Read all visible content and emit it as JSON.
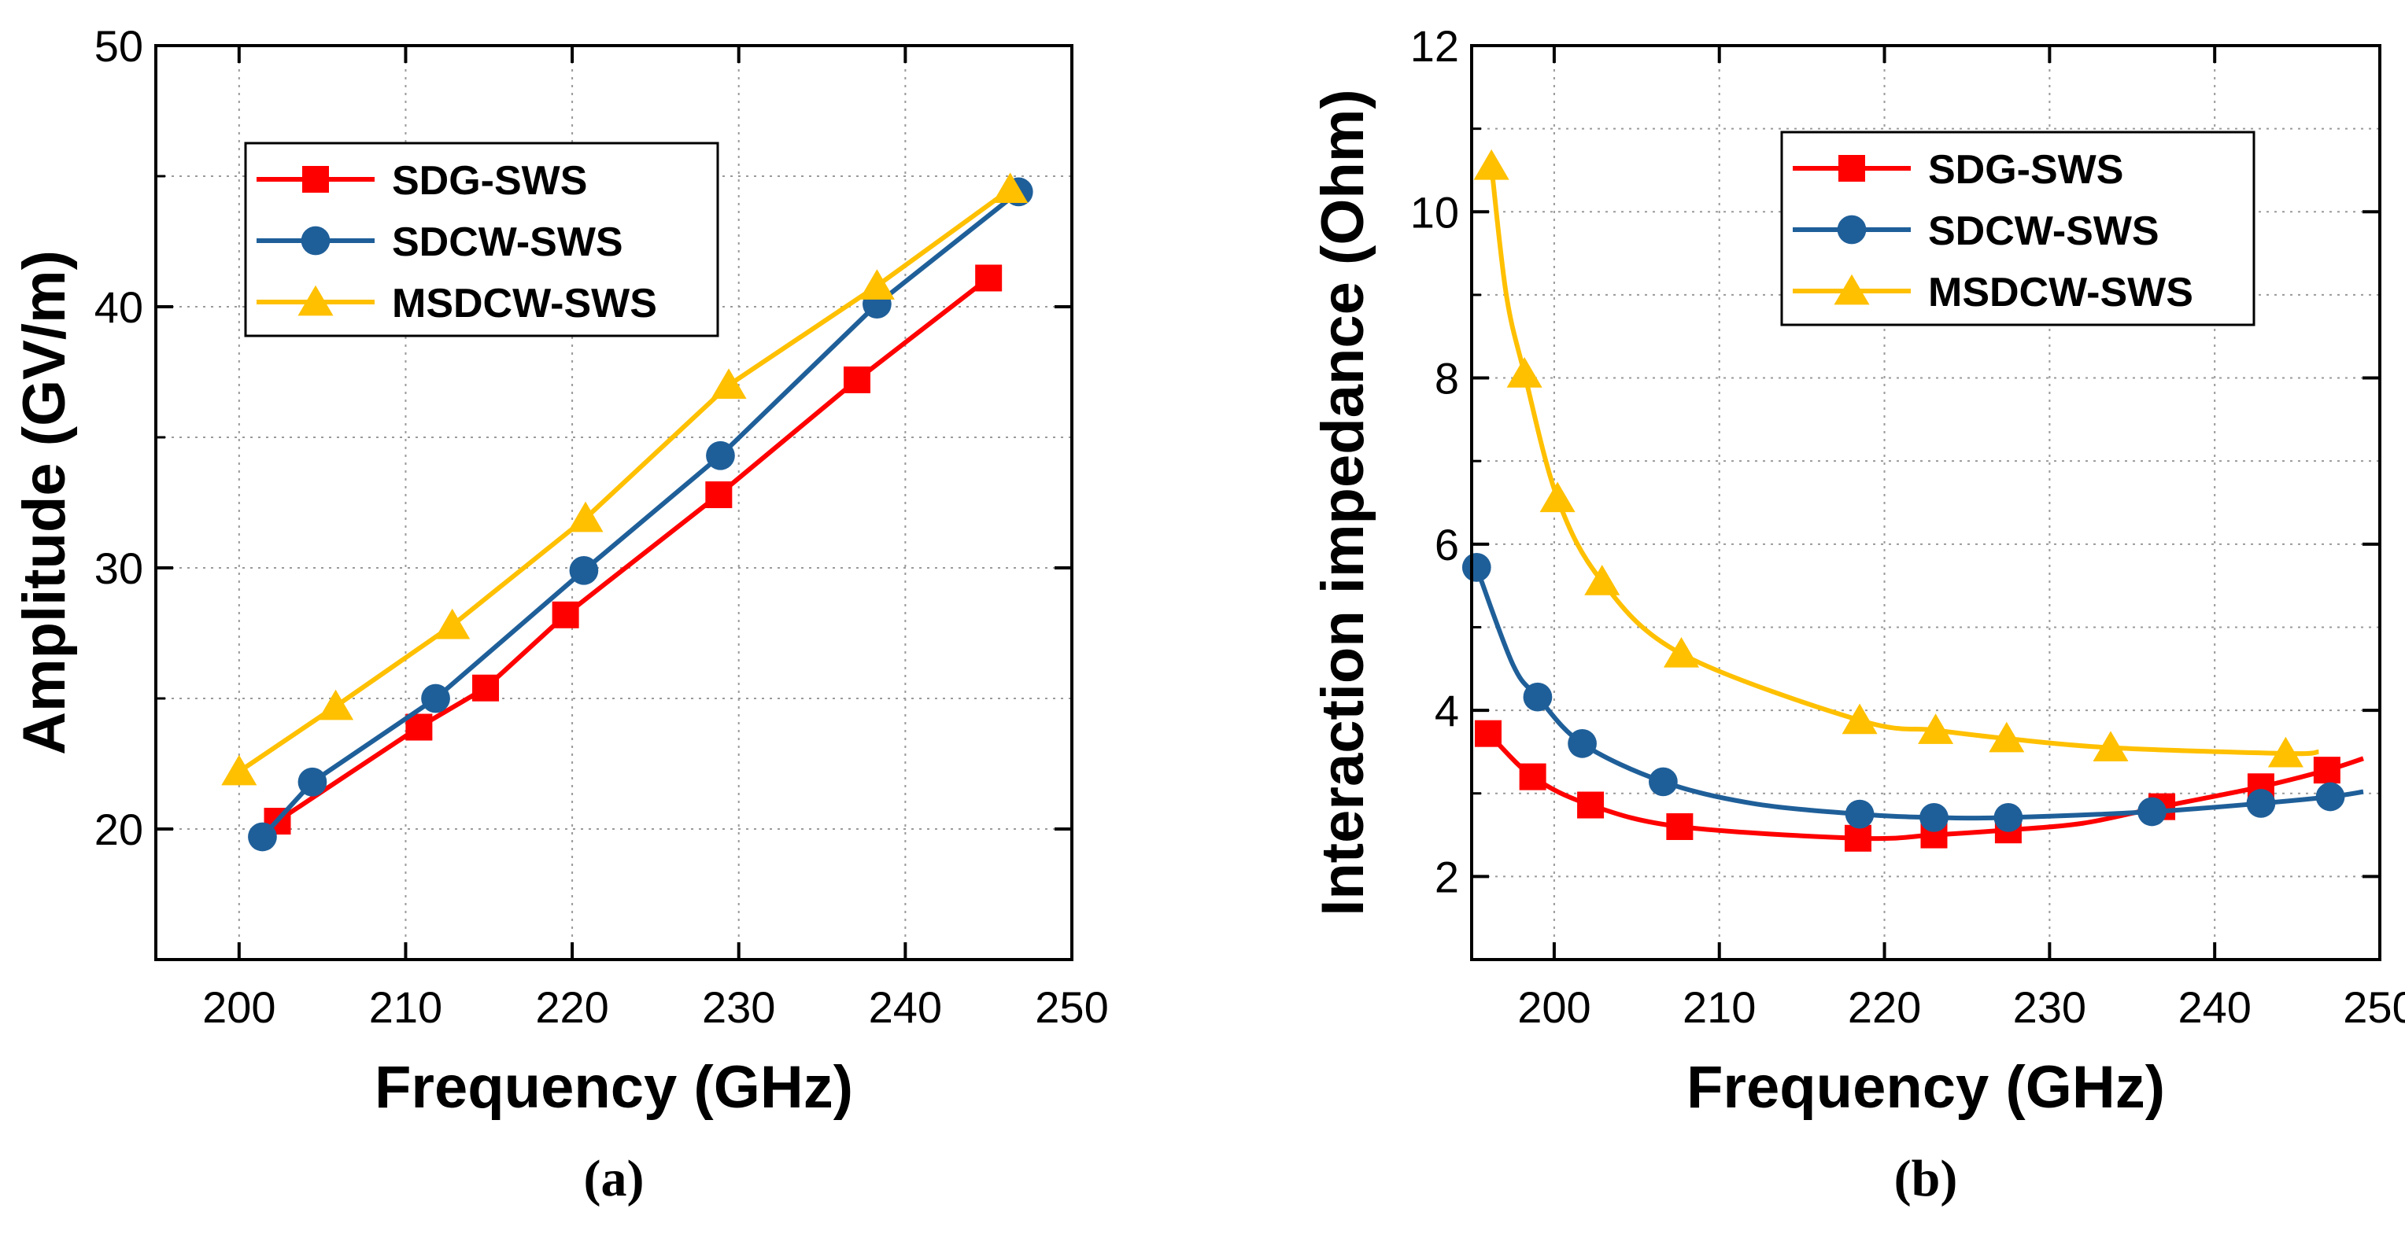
{
  "colors": {
    "SDG-SWS": "#ff0000",
    "SDCW-SWS": "#1f5f99",
    "MSDCW-SWS": "#ffc000",
    "axis": "#000000",
    "grid": "#9a9a9a"
  },
  "chart_data": [
    {
      "type": "line",
      "panel_label": "(a)",
      "xlabel": "Frequency (GHz)",
      "ylabel": "Amplitude (GV/m)",
      "xlim": [
        195,
        250
      ],
      "ylim": [
        15,
        50
      ],
      "xticks": [
        200,
        210,
        220,
        230,
        240,
        250
      ],
      "xtick_labels": [
        "200",
        "210",
        "220",
        "230",
        "240",
        "250"
      ],
      "yticks": [
        20,
        30,
        40,
        50
      ],
      "ytick_labels": [
        "20",
        "30",
        "40",
        "50"
      ],
      "grid": true,
      "legend_position": "top-left",
      "series": [
        {
          "name": "SDG-SWS",
          "marker": "square",
          "x": [
            202.3,
            210.8,
            214.8,
            219.6,
            228.8,
            237.1,
            245.0
          ],
          "y": [
            20.3,
            23.9,
            25.4,
            28.2,
            32.8,
            37.2,
            41.1
          ]
        },
        {
          "name": "SDCW-SWS",
          "marker": "circle",
          "x": [
            201.4,
            204.4,
            211.8,
            220.7,
            228.9,
            238.3,
            246.8
          ],
          "y": [
            19.7,
            21.8,
            25.0,
            29.9,
            34.3,
            40.1,
            44.4
          ]
        },
        {
          "name": "MSDCW-SWS",
          "marker": "triangle",
          "x": [
            200.0,
            205.8,
            212.8,
            220.8,
            229.4,
            238.3,
            246.3
          ],
          "y": [
            22.2,
            24.7,
            27.8,
            31.9,
            37.0,
            40.8,
            44.5
          ]
        }
      ]
    },
    {
      "type": "line",
      "panel_label": "(b)",
      "xlabel": "Frequency (GHz)",
      "ylabel": "Interaction impedance (Ohm)",
      "xlim": [
        195,
        250
      ],
      "ylim": [
        1,
        12
      ],
      "xticks": [
        200,
        210,
        220,
        230,
        240,
        250
      ],
      "xtick_labels": [
        "200",
        "210",
        "220",
        "230",
        "240",
        "250"
      ],
      "yticks": [
        2,
        4,
        6,
        8,
        10,
        12
      ],
      "ytick_labels": [
        "2",
        "4",
        "6",
        "8",
        "10",
        "12"
      ],
      "grid": true,
      "legend_position": "top-right",
      "series": [
        {
          "name": "SDG-SWS",
          "marker": "square",
          "x": [
            195.3,
            196.0,
            198.7,
            202.2,
            207.6,
            218.4,
            223.0,
            227.5,
            232.0,
            236.8,
            242.8,
            246.8,
            249.0
          ],
          "y": [
            3.8,
            3.72,
            3.2,
            2.86,
            2.6,
            2.46,
            2.5,
            2.56,
            2.64,
            2.84,
            3.08,
            3.28,
            3.42
          ],
          "marker_x": [
            196.0,
            198.7,
            202.2,
            207.6,
            218.4,
            223.0,
            227.5,
            236.8,
            242.8,
            246.8
          ],
          "marker_y": [
            3.72,
            3.2,
            2.86,
            2.6,
            2.46,
            2.5,
            2.56,
            2.84,
            3.08,
            3.28
          ]
        },
        {
          "name": "SDCW-SWS",
          "marker": "circle",
          "x": [
            195.3,
            197.5,
            199.0,
            201.7,
            206.6,
            212.0,
            218.5,
            223.0,
            227.5,
            236.2,
            242.8,
            247.0,
            249.0
          ],
          "y": [
            5.72,
            4.55,
            4.16,
            3.6,
            3.14,
            2.88,
            2.75,
            2.71,
            2.71,
            2.78,
            2.88,
            2.96,
            3.02
          ],
          "marker_x": [
            195.3,
            199.0,
            201.7,
            206.6,
            218.5,
            223.0,
            227.5,
            236.2,
            242.8,
            247.0
          ],
          "marker_y": [
            5.72,
            4.16,
            3.6,
            3.14,
            2.75,
            2.71,
            2.71,
            2.78,
            2.88,
            2.96
          ]
        },
        {
          "name": "MSDCW-SWS",
          "marker": "triangle",
          "x": [
            196.2,
            197.1,
            198.2,
            200.2,
            202.9,
            207.7,
            218.5,
            223.1,
            227.4,
            233.7,
            244.3,
            246.3
          ],
          "y": [
            10.55,
            9.0,
            8.05,
            6.55,
            5.55,
            4.68,
            3.88,
            3.76,
            3.66,
            3.55,
            3.48,
            3.5
          ],
          "marker_x": [
            196.2,
            198.2,
            200.2,
            202.9,
            207.7,
            218.5,
            223.1,
            227.4,
            233.7,
            244.3
          ],
          "marker_y": [
            10.55,
            8.05,
            6.55,
            5.55,
            4.68,
            3.88,
            3.76,
            3.66,
            3.55,
            3.48
          ]
        }
      ]
    }
  ]
}
